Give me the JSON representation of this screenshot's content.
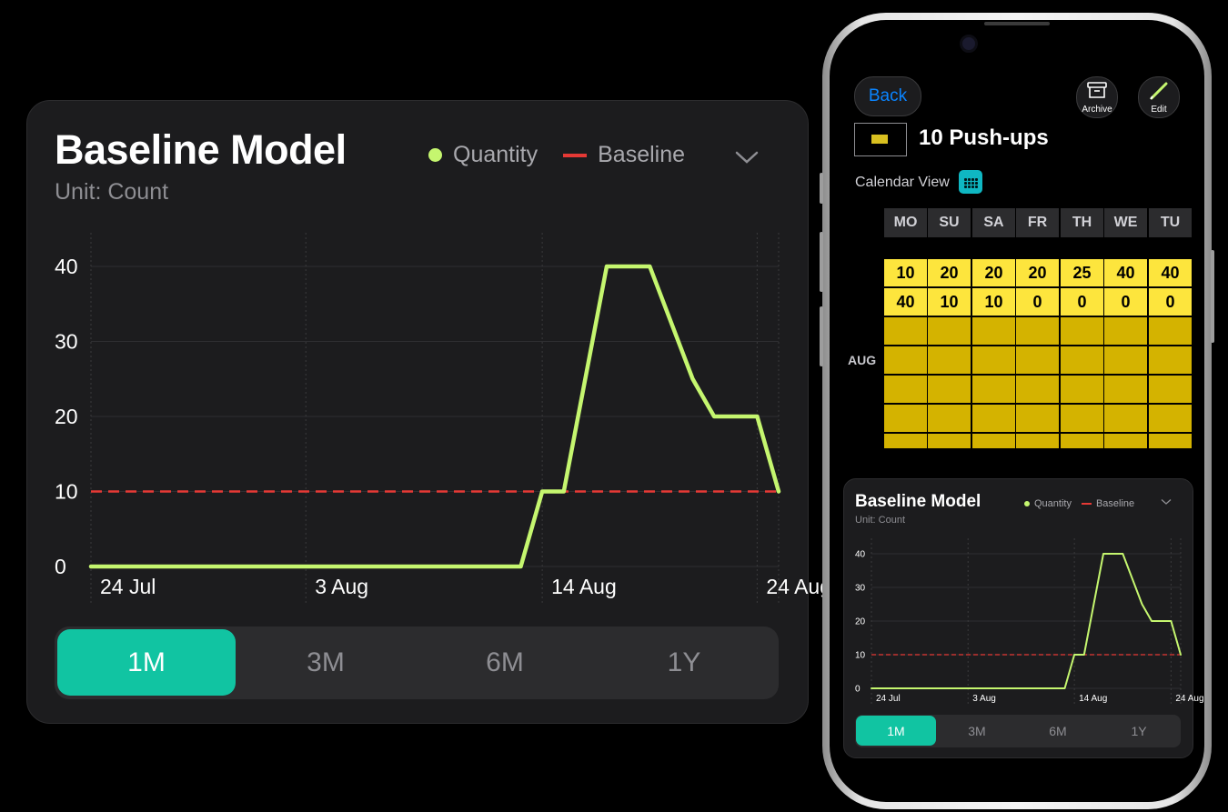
{
  "card": {
    "title": "Baseline Model",
    "unit": "Unit: Count",
    "legend": {
      "quantity": "Quantity",
      "baseline": "Baseline"
    },
    "chevron": "⌄",
    "ranges": [
      "1M",
      "3M",
      "6M",
      "1Y"
    ],
    "active_range": "1M"
  },
  "colors": {
    "quantity": "#c5f66f",
    "baseline": "#e53935",
    "accent": "#11c4a2",
    "cell_bright": "#fde53d",
    "cell_dim": "#d4b300",
    "link": "#0a84ff"
  },
  "chart_data": {
    "type": "line",
    "title": "Baseline Model",
    "subtitle": "Unit: Count",
    "x_tick_labels": [
      "24 Jul",
      "3 Aug",
      "14 Aug",
      "24 Aug"
    ],
    "x_ticks": [
      "2023-07-24",
      "2023-08-03",
      "2023-08-14",
      "2023-08-24"
    ],
    "ylim": [
      0,
      40
    ],
    "y_ticks": [
      0,
      10,
      20,
      30,
      40
    ],
    "grid": true,
    "legend_placement": "top-right",
    "series": [
      {
        "name": "Quantity",
        "color": "#c5f66f",
        "points": [
          [
            "2023-07-24",
            0
          ],
          [
            "2023-08-13",
            0
          ],
          [
            "2023-08-14",
            10
          ],
          [
            "2023-08-15",
            10
          ],
          [
            "2023-08-17",
            40
          ],
          [
            "2023-08-19",
            40
          ],
          [
            "2023-08-21",
            25
          ],
          [
            "2023-08-22",
            20
          ],
          [
            "2023-08-24",
            20
          ],
          [
            "2023-08-25",
            10
          ]
        ]
      },
      {
        "name": "Baseline",
        "color": "#e53935",
        "style": "dashed",
        "points": [
          [
            "2023-07-24",
            10
          ],
          [
            "2023-08-25",
            10
          ]
        ]
      }
    ]
  },
  "phone": {
    "back_label": "Back",
    "archive_label": "Archive",
    "edit_label": "Edit",
    "habit_title": "10 Push-ups",
    "calendar_view_label": "Calendar View",
    "days": [
      "MO",
      "SU",
      "SA",
      "FR",
      "TH",
      "WE",
      "TU"
    ],
    "month": "AUG",
    "rows": [
      [
        "10",
        "20",
        "20",
        "20",
        "25",
        "40",
        "40"
      ],
      [
        "40",
        "10",
        "10",
        "0",
        "0",
        "0",
        "0"
      ],
      [
        "",
        "",
        "",
        "",
        "",
        "",
        ""
      ],
      [
        "",
        "",
        "",
        "",
        "",
        "",
        ""
      ],
      [
        "",
        "",
        "",
        "",
        "",
        "",
        ""
      ],
      [
        "",
        "",
        "",
        "",
        "",
        "",
        ""
      ],
      [
        "",
        "",
        "",
        "",
        "",
        "",
        ""
      ]
    ]
  }
}
